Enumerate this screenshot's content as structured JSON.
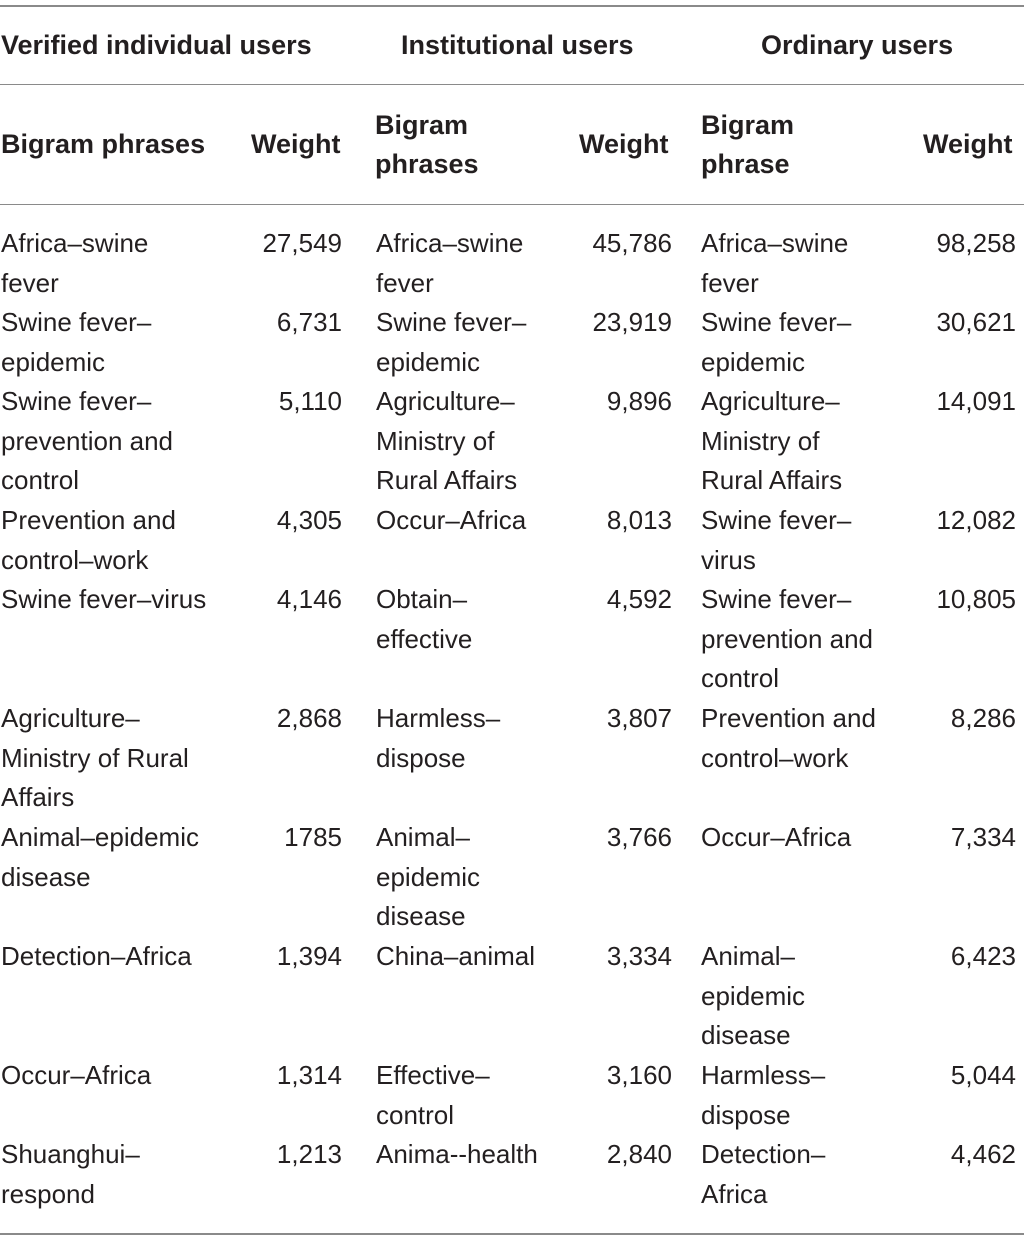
{
  "header": {
    "group1": "Verified individual users",
    "group2": "Institutional users",
    "group3": "Ordinary users",
    "g1_phrase": "Bigram phrases",
    "g1_weight": "Weight",
    "g2_phrase": "Bigram\nphrases",
    "g2_weight": "Weight",
    "g3_phrase": "Bigram\nphrase",
    "g3_weight": "Weight"
  },
  "rows": [
    {
      "p1": "Africa–swine\nfever",
      "w1": "27,549",
      "p2": "Africa–swine\nfever",
      "w2": "45,786",
      "p3": "Africa–swine\nfever",
      "w3": "98,258"
    },
    {
      "p1": "Swine fever–\nepidemic",
      "w1": "6,731",
      "p2": "Swine fever–\nepidemic",
      "w2": "23,919",
      "p3": "Swine fever–\nepidemic",
      "w3": "30,621"
    },
    {
      "p1": "Swine fever–\nprevention and\ncontrol",
      "w1": "5,110",
      "p2": "Agriculture–\nMinistry of\nRural Affairs",
      "w2": "9,896",
      "p3": "Agriculture–\nMinistry of\nRural Affairs",
      "w3": "14,091"
    },
    {
      "p1": "Prevention and\ncontrol–work",
      "w1": "4,305",
      "p2": "Occur–Africa",
      "w2": "8,013",
      "p3": "Swine fever–\nvirus",
      "w3": "12,082"
    },
    {
      "p1": "Swine fever–virus",
      "w1": "4,146",
      "p2": "Obtain–\neffective",
      "w2": "4,592",
      "p3": "Swine fever–\nprevention and\ncontrol",
      "w3": "10,805"
    },
    {
      "p1": "Agriculture–\nMinistry of Rural\nAffairs",
      "w1": "2,868",
      "p2": "Harmless–\ndispose",
      "w2": "3,807",
      "p3": "Prevention and\ncontrol–work",
      "w3": "8,286"
    },
    {
      "p1": "Animal–epidemic\ndisease",
      "w1": "1785",
      "p2": "Animal–\nepidemic\ndisease",
      "w2": "3,766",
      "p3": "Occur–Africa",
      "w3": "7,334"
    },
    {
      "p1": "Detection–Africa",
      "w1": "1,394",
      "p2": "China–animal",
      "w2": "3,334",
      "p3": "Animal–\nepidemic\ndisease",
      "w3": "6,423"
    },
    {
      "p1": "Occur–Africa",
      "w1": "1,314",
      "p2": "Effective–\ncontrol",
      "w2": "3,160",
      "p3": "Harmless–\ndispose",
      "w3": "5,044"
    },
    {
      "p1": "Shuanghui–\nrespond",
      "w1": "1,213",
      "p2": "Anima--health",
      "w2": "2,840",
      "p3": "Detection–\nAfrica",
      "w3": "4,462"
    }
  ]
}
